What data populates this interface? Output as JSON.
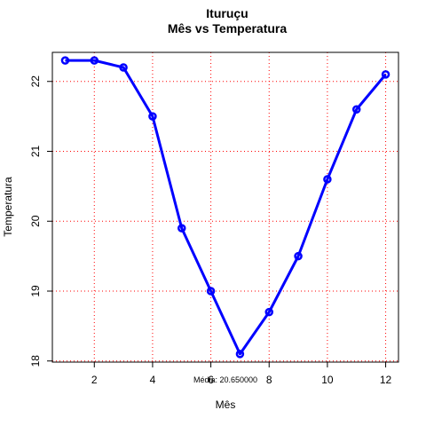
{
  "chart_data": {
    "type": "line",
    "title": "Ituruçu",
    "subtitle": "Mês vs Temperatura",
    "xlabel": "Mês",
    "ylabel": "Temperatura",
    "annotation": "Média: 20.650000",
    "x": [
      1,
      2,
      3,
      4,
      5,
      6,
      7,
      8,
      9,
      10,
      11,
      12
    ],
    "series": [
      {
        "values": [
          22.3,
          22.3,
          22.2,
          21.5,
          19.9,
          19.0,
          18.1,
          18.7,
          19.5,
          20.6,
          21.6,
          22.1
        ]
      }
    ],
    "xlim": [
      0.56,
      12.44
    ],
    "ylim": [
      17.984,
      22.416
    ],
    "x_ticks": [
      2,
      4,
      6,
      8,
      10,
      12
    ],
    "x_tick_labels": [
      "2",
      "4",
      "6",
      "8",
      "10",
      "12"
    ],
    "y_ticks": [
      18,
      19,
      20,
      21,
      22
    ],
    "y_tick_labels": [
      "18",
      "19",
      "20",
      "21",
      "22"
    ],
    "grid": true,
    "colors": {
      "line": "#0000ff",
      "grid": "#ff0000",
      "axis": "#000000"
    }
  }
}
